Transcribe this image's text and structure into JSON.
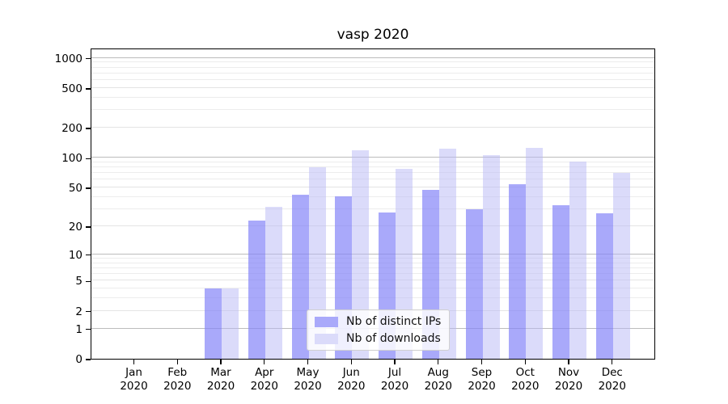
{
  "title": "vasp 2020",
  "chart_data": {
    "type": "bar",
    "title": "vasp 2020",
    "yscale": "log1p",
    "grid": true,
    "legend_position": "lower center",
    "ylim": [
      0,
      1265
    ],
    "y_ticks": [
      1000,
      500,
      200,
      100,
      50,
      20,
      10,
      5,
      2,
      1,
      0
    ],
    "x_year": "2020",
    "categories": [
      "Jan",
      "Feb",
      "Mar",
      "Apr",
      "May",
      "Jun",
      "Jul",
      "Aug",
      "Sep",
      "Oct",
      "Nov",
      "Dec"
    ],
    "series": [
      {
        "name": "Nb of distinct IPs",
        "color": "#a9a9fa",
        "values": [
          0,
          0,
          4,
          23,
          42,
          41,
          28,
          47,
          30,
          54,
          33,
          27
        ]
      },
      {
        "name": "Nb of downloads",
        "color": "#dbdbfa",
        "values": [
          0,
          0,
          4,
          32,
          81,
          120,
          77,
          124,
          107,
          126,
          92,
          70
        ]
      }
    ]
  },
  "legend": {
    "items": [
      {
        "label": "Nb of distinct IPs",
        "color": "#a9a9fa"
      },
      {
        "label": "Nb of downloads",
        "color": "#dbdbfa"
      }
    ]
  }
}
